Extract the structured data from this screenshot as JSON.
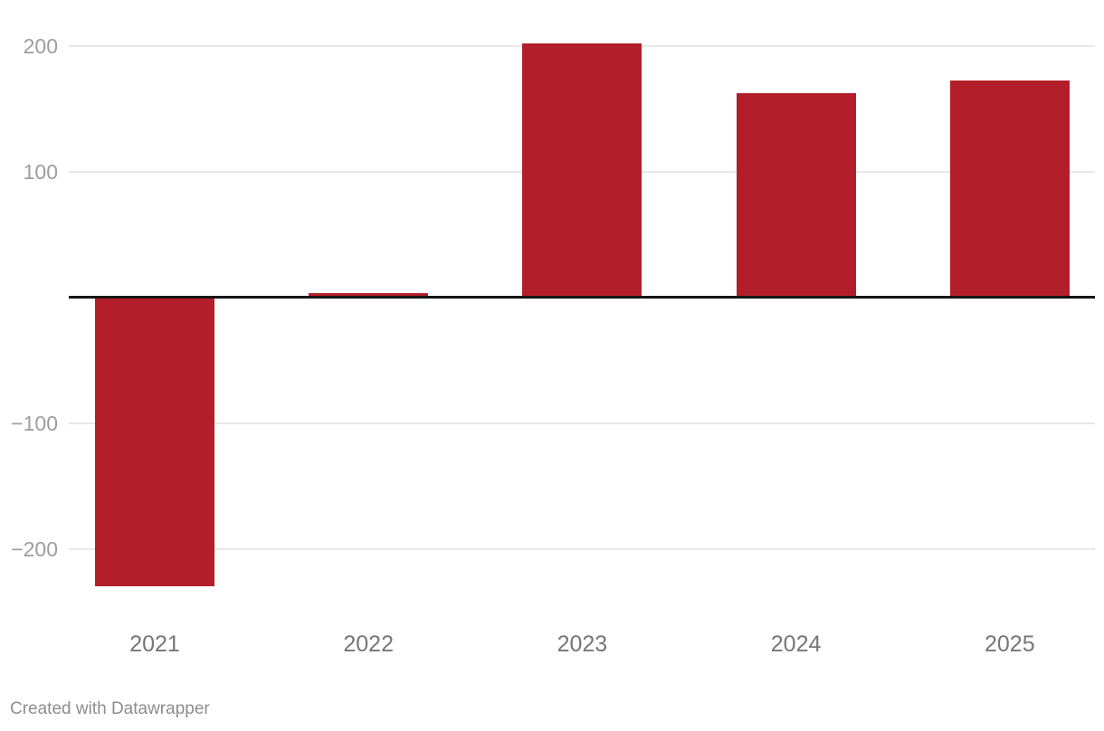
{
  "chart_data": {
    "type": "bar",
    "categories": [
      "2021",
      "2022",
      "2023",
      "2024",
      "2025"
    ],
    "values": [
      -230,
      3,
      202,
      162,
      172
    ],
    "title": "",
    "xlabel": "",
    "ylabel": "",
    "ylim": [
      -250,
      225
    ],
    "y_ticks": [
      {
        "value": 200,
        "label": "200"
      },
      {
        "value": 100,
        "label": "100"
      },
      {
        "value": -100,
        "label": "−100"
      },
      {
        "value": -200,
        "label": "−200"
      }
    ],
    "grid": true,
    "legend": "none",
    "zero_baseline": true
  },
  "colors": {
    "bar": "#b21e29",
    "gridline": "#e8e8e8",
    "baseline": "#161616",
    "y_tick_text": "#9d9d9d",
    "x_tick_text": "#767676",
    "footer_text": "#8d8d8d",
    "background": "#ffffff"
  },
  "footer": {
    "attribution": "Created with Datawrapper"
  }
}
